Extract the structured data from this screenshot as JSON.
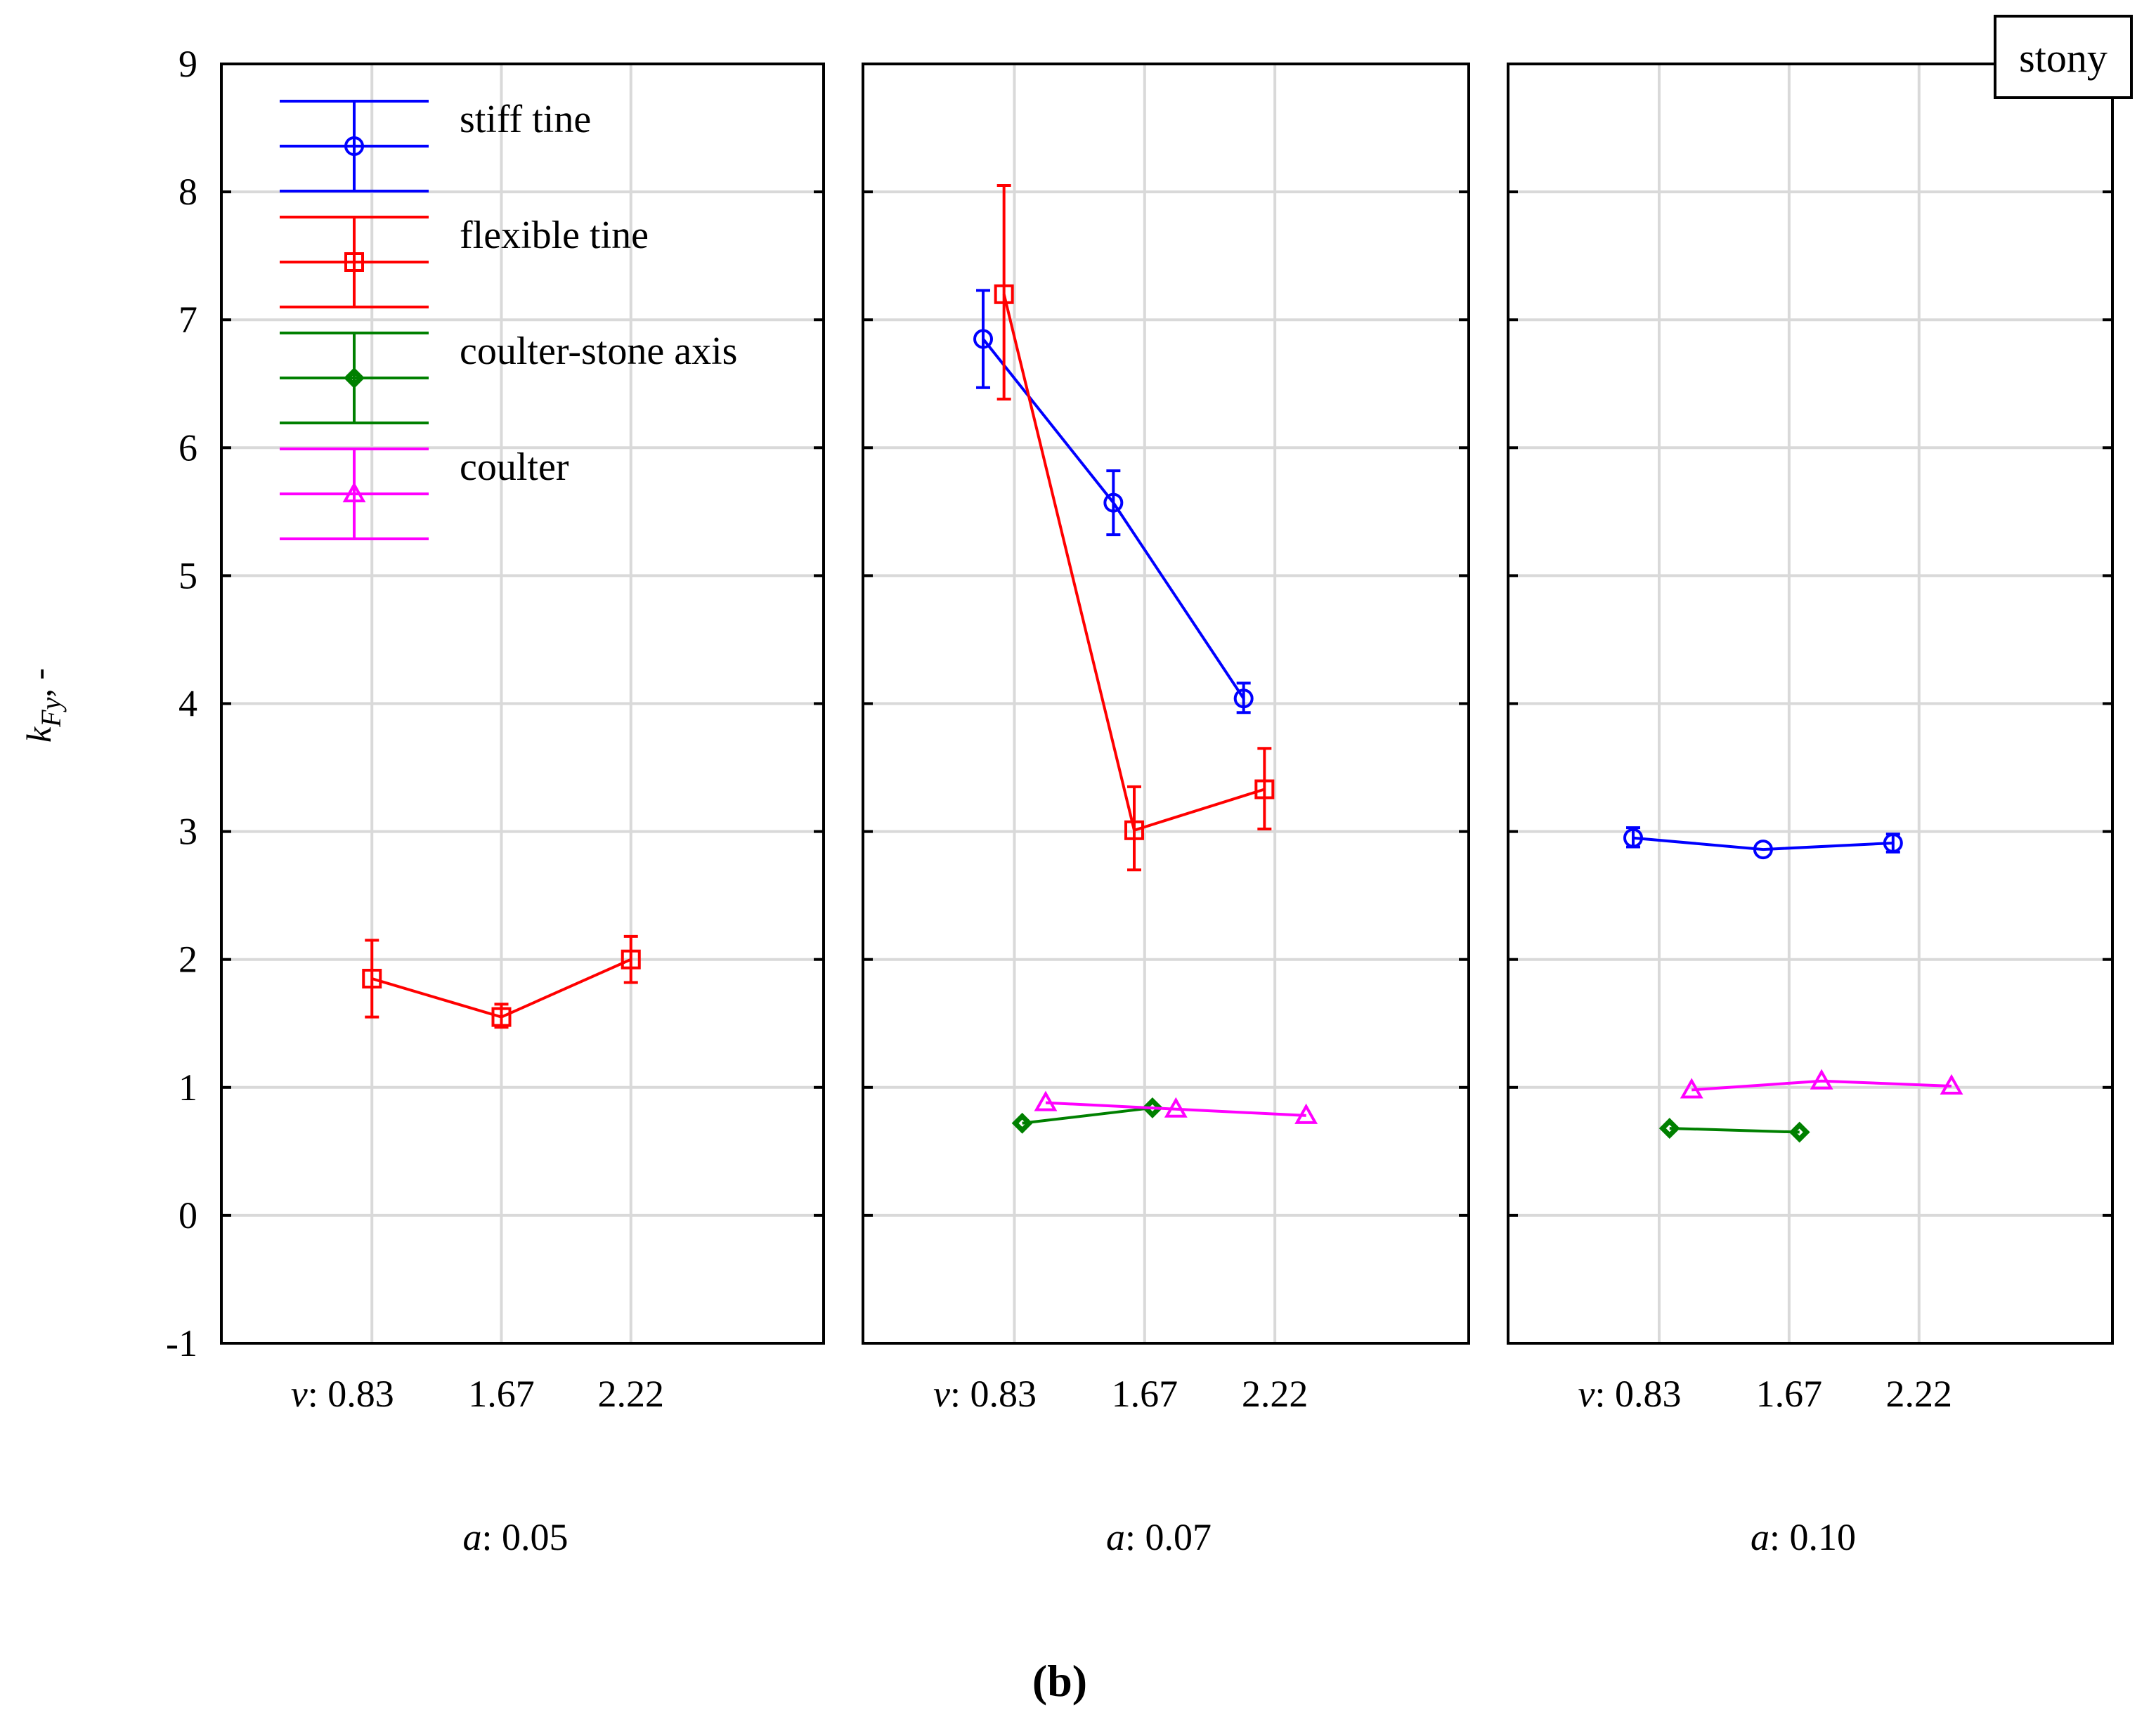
{
  "chart_data": {
    "type": "line",
    "yaxis": {
      "label": "k",
      "subscript": "Fy",
      "suffix": ", -",
      "min": -1,
      "max": 9,
      "ticks": [
        -1,
        0,
        1,
        2,
        3,
        4,
        5,
        6,
        7,
        8,
        9
      ]
    },
    "x_prefix": "v",
    "x_categories": [
      "0.83",
      "1.67",
      "2.22"
    ],
    "panel_prefix": "a",
    "badge": "stony",
    "caption": "b",
    "colors": {
      "stiff": "#0000ff",
      "flexible": "#ff0000",
      "axis": "#008000",
      "coulter": "#ff00ff"
    },
    "legend": [
      {
        "key": "stiff",
        "label": "stiff tine",
        "marker": "circle"
      },
      {
        "key": "flexible",
        "label": "flexible tine",
        "marker": "square"
      },
      {
        "key": "axis",
        "label": "coulter-stone axis",
        "marker": "diamond"
      },
      {
        "key": "coulter",
        "label": "coulter",
        "marker": "triangle"
      }
    ],
    "panels": [
      {
        "a": "0.05",
        "series": [
          {
            "key": "flexible",
            "marker": "square",
            "offset": 0.0,
            "points": [
              {
                "x": 0,
                "y": 1.85,
                "lo": 1.55,
                "hi": 2.15
              },
              {
                "x": 1,
                "y": 1.55,
                "lo": 1.47,
                "hi": 1.65
              },
              {
                "x": 2,
                "y": 2.0,
                "lo": 1.82,
                "hi": 2.18
              }
            ]
          }
        ]
      },
      {
        "a": "0.07",
        "series": [
          {
            "key": "stiff",
            "marker": "circle",
            "offset": -0.24,
            "points": [
              {
                "x": 0,
                "y": 6.85,
                "lo": 6.47,
                "hi": 7.23
              },
              {
                "x": 1,
                "y": 5.57,
                "lo": 5.32,
                "hi": 5.82
              },
              {
                "x": 2,
                "y": 4.04,
                "lo": 3.93,
                "hi": 4.16
              }
            ]
          },
          {
            "key": "flexible",
            "marker": "square",
            "offset": -0.08,
            "points": [
              {
                "x": 0,
                "y": 7.2,
                "lo": 6.38,
                "hi": 8.05
              },
              {
                "x": 1,
                "y": 3.01,
                "lo": 2.7,
                "hi": 3.35
              },
              {
                "x": 2,
                "y": 3.33,
                "lo": 3.02,
                "hi": 3.65
              }
            ]
          },
          {
            "key": "axis",
            "marker": "diamond",
            "offset": 0.06,
            "points": [
              {
                "x": 0,
                "y": 0.72
              },
              {
                "x": 1,
                "y": 0.84
              }
            ]
          },
          {
            "key": "coulter",
            "marker": "triangle",
            "offset": 0.24,
            "points": [
              {
                "x": 0,
                "y": 0.88
              },
              {
                "x": 1,
                "y": 0.83
              },
              {
                "x": 2,
                "y": 0.78
              }
            ]
          }
        ]
      },
      {
        "a": "0.10",
        "series": [
          {
            "key": "stiff",
            "marker": "circle",
            "offset": -0.2,
            "points": [
              {
                "x": 0,
                "y": 2.95,
                "lo": 2.88,
                "hi": 3.03
              },
              {
                "x": 1,
                "y": 2.86
              },
              {
                "x": 2,
                "y": 2.91,
                "lo": 2.84,
                "hi": 2.98
              }
            ]
          },
          {
            "key": "axis",
            "marker": "diamond",
            "offset": 0.08,
            "points": [
              {
                "x": 0,
                "y": 0.68
              },
              {
                "x": 1,
                "y": 0.65
              }
            ]
          },
          {
            "key": "coulter",
            "marker": "triangle",
            "offset": 0.25,
            "points": [
              {
                "x": 0,
                "y": 0.98
              },
              {
                "x": 1,
                "y": 1.05
              },
              {
                "x": 2,
                "y": 1.01
              }
            ]
          }
        ]
      }
    ]
  }
}
